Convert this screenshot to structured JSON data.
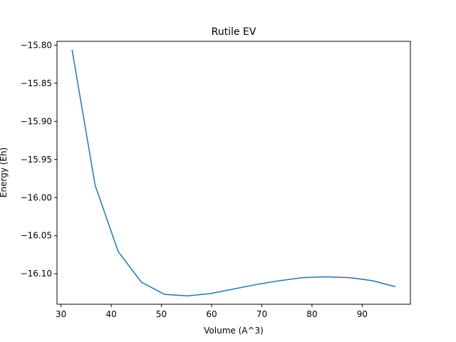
{
  "chart_data": {
    "type": "line",
    "title": "Rutile EV",
    "xlabel": "Volume (A^3)",
    "ylabel": "Energy (Eh)",
    "xlim": [
      29.2,
      99.6
    ],
    "ylim": [
      -16.14,
      -15.795
    ],
    "xticks": [
      30,
      40,
      50,
      60,
      70,
      80,
      90
    ],
    "xtick_labels": [
      "30",
      "40",
      "50",
      "60",
      "70",
      "80",
      "90"
    ],
    "yticks": [
      -15.8,
      -15.85,
      -15.9,
      -15.95,
      -16.0,
      -16.05,
      -16.1
    ],
    "ytick_labels": [
      "−15.80",
      "−15.85",
      "−15.90",
      "−15.95",
      "−16.00",
      "−16.05",
      "−16.10"
    ],
    "grid": false,
    "series": [
      {
        "color": "#1f77b4",
        "x": [
          32.2,
          36.8,
          41.4,
          46.0,
          50.6,
          55.2,
          59.8,
          64.4,
          69.0,
          73.6,
          78.2,
          82.8,
          87.4,
          92.0,
          96.6
        ],
        "y": [
          -15.806,
          -15.984,
          -16.071,
          -16.111,
          -16.127,
          -16.129,
          -16.126,
          -16.12,
          -16.114,
          -16.109,
          -16.105,
          -16.104,
          -16.105,
          -16.109,
          -16.117
        ]
      }
    ]
  }
}
